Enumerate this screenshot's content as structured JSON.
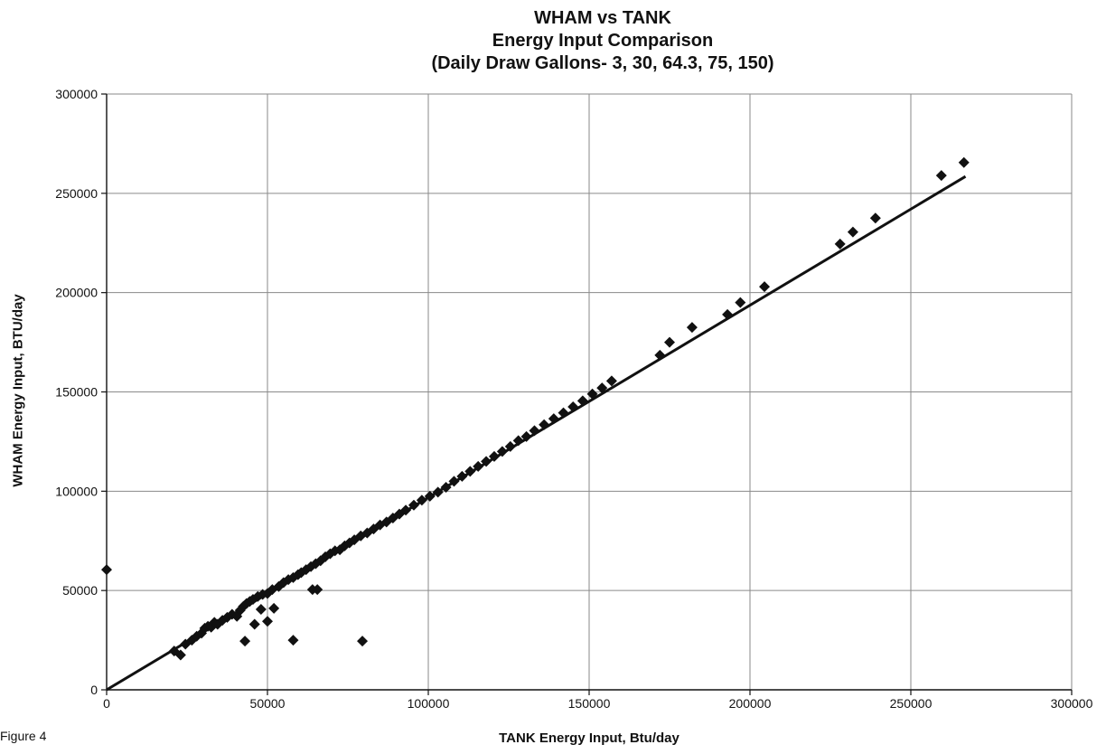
{
  "figure_label": "Figure 4",
  "chart_data": {
    "type": "scatter",
    "title": "WHAM vs TANK",
    "subtitle": "Energy Input Comparison",
    "subtitle2": "(Daily Draw Gallons- 3, 30, 64.3, 75, 150)",
    "xlabel": "TANK Energy Input, Btu/day",
    "ylabel": "WHAM Energy Input, BTU/day",
    "xlim": [
      0,
      300000
    ],
    "ylim": [
      0,
      300000
    ],
    "x_ticks": [
      0,
      50000,
      100000,
      150000,
      200000,
      250000,
      300000
    ],
    "y_ticks": [
      0,
      50000,
      100000,
      150000,
      200000,
      250000,
      300000
    ],
    "x_tick_labels": [
      "0",
      "50000",
      "100000",
      "150000",
      "200000",
      "250000",
      "300000"
    ],
    "y_tick_labels": [
      "0",
      "50000",
      "100000",
      "150000",
      "200000",
      "250000",
      "300000"
    ],
    "grid": "vertical and horizontal major gridlines",
    "marker_color": "#111111",
    "marker_shape": "diamond",
    "fit_line": {
      "x": [
        0,
        267000
      ],
      "y": [
        0,
        258500
      ]
    },
    "series": [
      {
        "x": [
          0,
          21000,
          23000,
          24500,
          26500,
          28000,
          29500,
          30500,
          31500,
          32500,
          33500,
          34500,
          36000,
          37500,
          39000,
          40500,
          41500,
          42500,
          43500,
          44500,
          45500,
          47000,
          48500,
          50000,
          51500,
          53500,
          55000,
          56500,
          58000,
          59500,
          60500,
          62000,
          63500,
          65000,
          66500,
          68000,
          69500,
          71000,
          72500,
          74000,
          75500,
          77000,
          79000,
          81000,
          83000,
          85000,
          87000,
          89000,
          91000,
          93000,
          95500,
          98000,
          100500,
          103000,
          105500,
          108000,
          110500,
          113000,
          115500,
          118000,
          120500,
          123000,
          125500,
          128000,
          130500,
          133000,
          136000,
          139000,
          142000,
          145000,
          148000,
          151000,
          154000,
          157000,
          172000,
          175000,
          182000,
          193000,
          197000,
          204500,
          228000,
          232000,
          239000,
          259500,
          266500,
          43000,
          46000,
          48000,
          50000,
          52000,
          58000,
          64000,
          65500,
          79500
        ],
        "y": [
          60500,
          19500,
          17500,
          23000,
          25000,
          27000,
          28500,
          31000,
          32000,
          31500,
          34000,
          33000,
          35000,
          36500,
          38000,
          37000,
          40000,
          42000,
          43500,
          44500,
          45500,
          47000,
          48000,
          48500,
          50500,
          52000,
          54000,
          55500,
          56500,
          58000,
          59000,
          60500,
          62000,
          63500,
          65000,
          67000,
          68500,
          70000,
          70500,
          72500,
          74000,
          75500,
          77500,
          79000,
          81000,
          83000,
          84500,
          86500,
          88500,
          90500,
          93000,
          95500,
          97500,
          99500,
          102000,
          105000,
          107500,
          110000,
          112500,
          115000,
          117500,
          120000,
          122500,
          125500,
          127500,
          130500,
          133500,
          136500,
          139500,
          142500,
          145500,
          149000,
          152000,
          155500,
          168500,
          175000,
          182500,
          189000,
          195000,
          203000,
          224500,
          230500,
          237500,
          259000,
          265500,
          24500,
          33000,
          40500,
          34500,
          41000,
          25000,
          50500,
          50500,
          24500
        ]
      }
    ]
  }
}
